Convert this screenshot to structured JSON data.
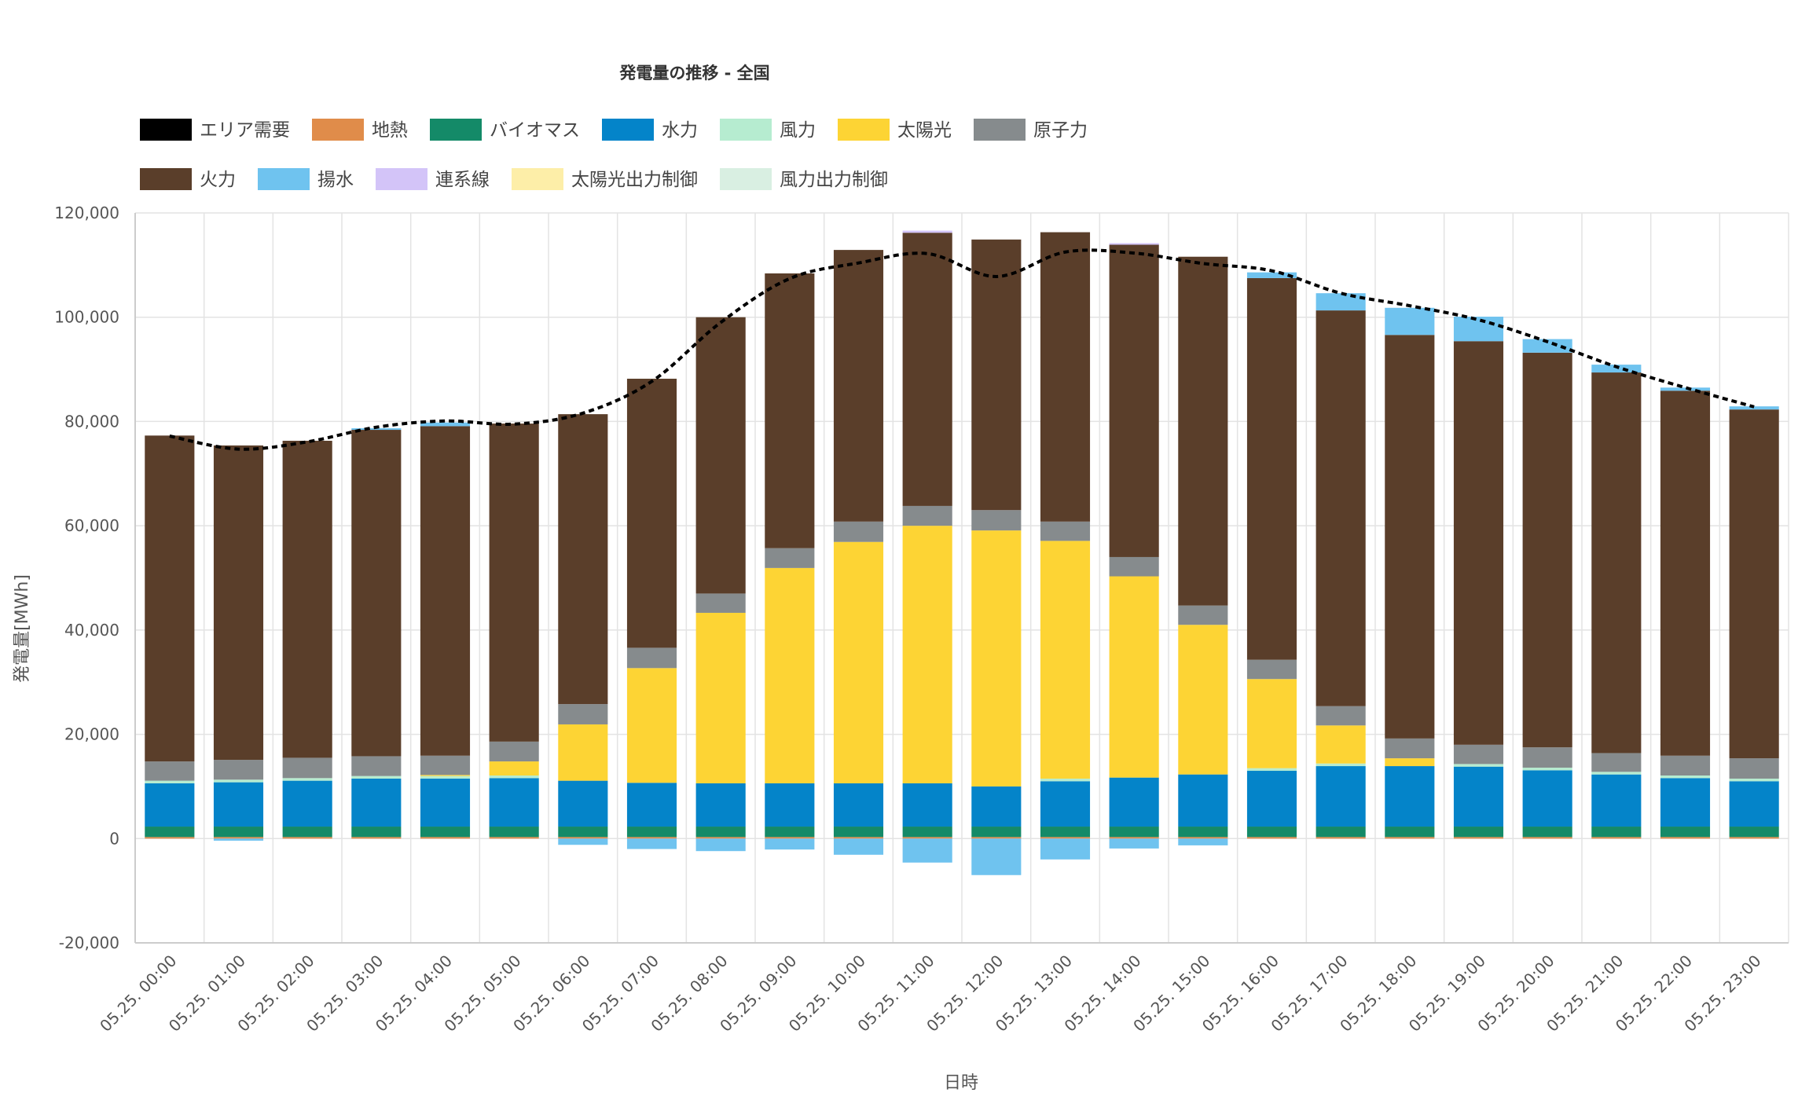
{
  "chart_data": {
    "type": "bar",
    "stacked": true,
    "title": "発電量の推移 - 全国",
    "xlabel": "日時",
    "ylabel": "発電量[MWh]",
    "ylim": [
      -20000,
      120000
    ],
    "y_ticks": [
      -20000,
      0,
      20000,
      40000,
      60000,
      80000,
      100000,
      120000
    ],
    "y_tick_labels": [
      "-20,000",
      "0",
      "20,000",
      "40,000",
      "60,000",
      "80,000",
      "100,000",
      "120,000"
    ],
    "categories": [
      "05.25. 00:00",
      "05.25. 01:00",
      "05.25. 02:00",
      "05.25. 03:00",
      "05.25. 04:00",
      "05.25. 05:00",
      "05.25. 06:00",
      "05.25. 07:00",
      "05.25. 08:00",
      "05.25. 09:00",
      "05.25. 10:00",
      "05.25. 11:00",
      "05.25. 12:00",
      "05.25. 13:00",
      "05.25. 14:00",
      "05.25. 15:00",
      "05.25. 16:00",
      "05.25. 17:00",
      "05.25. 18:00",
      "05.25. 19:00",
      "05.25. 20:00",
      "05.25. 21:00",
      "05.25. 22:00",
      "05.25. 23:00"
    ],
    "legend": [
      {
        "name": "エリア需要",
        "color": "#000000"
      },
      {
        "name": "地熱",
        "color": "#e08c4a"
      },
      {
        "name": "バイオマス",
        "color": "#148a68"
      },
      {
        "name": "水力",
        "color": "#0484c9"
      },
      {
        "name": "風力",
        "color": "#b6ecd0"
      },
      {
        "name": "太陽光",
        "color": "#fdd434"
      },
      {
        "name": "原子力",
        "color": "#868b8d"
      },
      {
        "name": "火力",
        "color": "#5a3e2a"
      },
      {
        "name": "揚水",
        "color": "#6fc3ef"
      },
      {
        "name": "連系線",
        "color": "#d3c4f8"
      },
      {
        "name": "太陽光出力制御",
        "color": "#fdeea8"
      },
      {
        "name": "風力出力制御",
        "color": "#d9efe2"
      }
    ],
    "series": [
      {
        "name": "地熱",
        "color": "#e08c4a",
        "values": [
          300,
          300,
          300,
          300,
          300,
          300,
          300,
          300,
          300,
          300,
          300,
          300,
          300,
          300,
          300,
          300,
          300,
          300,
          300,
          300,
          300,
          300,
          300,
          300
        ]
      },
      {
        "name": "バイオマス",
        "color": "#148a68",
        "values": [
          2000,
          2000,
          2000,
          2000,
          2000,
          2000,
          2000,
          2000,
          2000,
          2000,
          2000,
          2000,
          2000,
          2000,
          2000,
          2000,
          2000,
          2000,
          2000,
          2000,
          2000,
          2000,
          2000,
          2000
        ]
      },
      {
        "name": "水力",
        "color": "#0484c9",
        "values": [
          8300,
          8500,
          8800,
          9200,
          9200,
          9300,
          8800,
          8400,
          8300,
          8300,
          8300,
          8300,
          7700,
          8700,
          9400,
          10000,
          10700,
          11600,
          11600,
          11500,
          10800,
          10000,
          9300,
          8700
        ]
      },
      {
        "name": "風力",
        "color": "#b6ecd0",
        "values": [
          500,
          500,
          500,
          500,
          500,
          500,
          0,
          0,
          0,
          0,
          0,
          0,
          0,
          500,
          0,
          0,
          500,
          500,
          0,
          500,
          500,
          500,
          500,
          500
        ]
      },
      {
        "name": "太陽光",
        "color": "#fdd434",
        "values": [
          0,
          0,
          0,
          0,
          200,
          2700,
          10800,
          22000,
          32700,
          41300,
          46300,
          49400,
          49100,
          45600,
          38600,
          28700,
          17100,
          7300,
          1500,
          0,
          0,
          0,
          0,
          0
        ]
      },
      {
        "name": "原子力",
        "color": "#868b8d",
        "values": [
          3700,
          3800,
          3900,
          3800,
          3700,
          3800,
          3900,
          3900,
          3700,
          3800,
          3900,
          3800,
          3900,
          3700,
          3700,
          3700,
          3700,
          3700,
          3800,
          3700,
          3900,
          3600,
          3800,
          3900
        ]
      },
      {
        "name": "火力",
        "color": "#5a3e2a",
        "values": [
          62500,
          60300,
          60800,
          62600,
          63200,
          61000,
          55600,
          51600,
          53000,
          52700,
          52100,
          52400,
          51900,
          55500,
          59900,
          66900,
          73200,
          75900,
          77400,
          77400,
          75700,
          73000,
          70000,
          66900
        ]
      },
      {
        "name": "揚水",
        "color": "#6fc3ef",
        "values": [
          0,
          -400,
          0,
          300,
          700,
          0,
          -1200,
          -2000,
          -2400,
          -2100,
          -3100,
          -4600,
          -7000,
          -4000,
          -1900,
          -1300,
          1100,
          3300,
          5200,
          4700,
          2600,
          1500,
          600,
          600
        ]
      },
      {
        "name": "連系線",
        "color": "#d3c4f8",
        "values": [
          0,
          0,
          0,
          0,
          0,
          0,
          0,
          0,
          0,
          0,
          0,
          400,
          0,
          0,
          300,
          0,
          0,
          0,
          0,
          0,
          0,
          0,
          0,
          0
        ]
      }
    ],
    "demand": {
      "name": "エリア需要",
      "style": "dashed",
      "color": "#000000",
      "values": [
        77200,
        74700,
        76100,
        78900,
        80100,
        79500,
        81600,
        87700,
        99000,
        107400,
        110400,
        112200,
        107800,
        112500,
        112300,
        110300,
        108900,
        104600,
        102200,
        99500,
        95300,
        90500,
        86500,
        82800
      ]
    }
  }
}
